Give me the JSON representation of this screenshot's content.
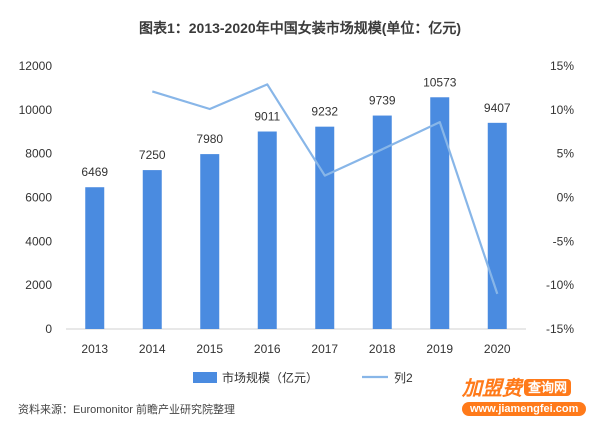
{
  "title": "图表1：2013-2020年中国女装市场规模(单位：亿元)",
  "source": "资料来源：Euromonitor 前瞻产业研究院整理",
  "watermark": {
    "brand": "加盟费",
    "tag": "查询网",
    "url": "www.jiamengfei.com"
  },
  "colors": {
    "bar": "#4a8be0",
    "line": "#88b6e8",
    "axis_text": "#333333"
  },
  "chart_data": {
    "type": "bar",
    "categories": [
      "2013",
      "2014",
      "2015",
      "2016",
      "2017",
      "2018",
      "2019",
      "2020"
    ],
    "series": [
      {
        "name": "市场规模（亿元）",
        "type": "bar",
        "axis": "left",
        "values": [
          6469,
          7250,
          7980,
          9011,
          9232,
          9739,
          10573,
          9407
        ]
      },
      {
        "name": "列2",
        "type": "line",
        "axis": "right",
        "unit": "%",
        "values": [
          null,
          12.1,
          10.1,
          12.9,
          2.5,
          5.5,
          8.6,
          -11.0
        ]
      }
    ],
    "y_left": {
      "range": [
        0,
        12000
      ],
      "ticks": [
        "0",
        "2000",
        "4000",
        "6000",
        "8000",
        "10000",
        "12000"
      ]
    },
    "y_right": {
      "range": [
        -15,
        15
      ],
      "ticks": [
        "-15%",
        "-10%",
        "-5%",
        "0%",
        "5%",
        "10%",
        "15%"
      ]
    },
    "legend_position": "bottom",
    "grid": false
  }
}
